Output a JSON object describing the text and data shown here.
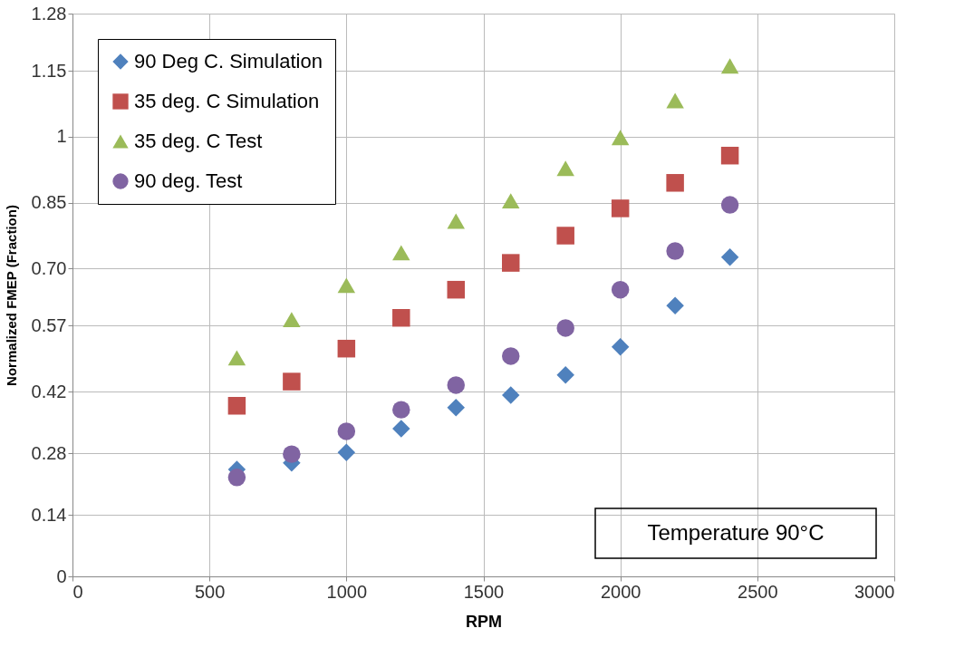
{
  "chart_data": {
    "type": "scatter",
    "xlabel": "RPM",
    "ylabel": "Normalized FMEP (Fraction)",
    "x": [
      600,
      800,
      1000,
      1200,
      1400,
      1600,
      1800,
      2000,
      2200,
      2400
    ],
    "series": [
      {
        "name": "90 Deg C. Simulation",
        "color": "#4f81bd",
        "marker": "diamond",
        "values": [
          0.243,
          0.258,
          0.282,
          0.336,
          0.384,
          0.412,
          0.458,
          0.522,
          0.616,
          0.726
        ]
      },
      {
        "name": "35 deg. C Simulation",
        "color": "#c0504d",
        "marker": "square",
        "values": [
          0.388,
          0.443,
          0.518,
          0.588,
          0.652,
          0.713,
          0.775,
          0.837,
          0.895,
          0.957
        ]
      },
      {
        "name": "35 deg. C Test",
        "color": "#9bbb59",
        "marker": "triangle",
        "values": [
          0.497,
          0.584,
          0.662,
          0.736,
          0.808,
          0.854,
          0.928,
          0.998,
          1.082,
          1.161
        ]
      },
      {
        "name": "90 deg. Test",
        "color": "#8064a2",
        "marker": "circle",
        "values": [
          0.225,
          0.278,
          0.33,
          0.379,
          0.435,
          0.501,
          0.565,
          0.652,
          0.74,
          0.845
        ]
      }
    ],
    "xlim": [
      0,
      3000
    ],
    "xticks": [
      0,
      500,
      1000,
      1500,
      2000,
      2500,
      3000
    ],
    "ylim": [
      0,
      1.28
    ],
    "yticks": [
      0,
      0.14,
      0.28,
      0.42,
      0.57,
      {
        "value": 0.7,
        "label": "0.70"
      },
      0.85,
      1,
      1.15,
      1.28
    ],
    "grid": true,
    "legend": "top left",
    "annotations": [
      "Temperature 90°C"
    ]
  }
}
